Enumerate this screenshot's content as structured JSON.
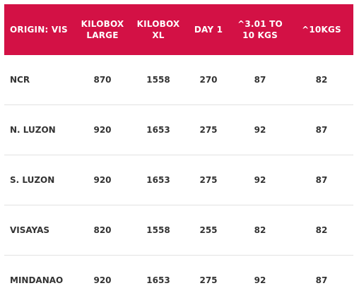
{
  "table": {
    "headers": [
      {
        "line1": "ORIGIN: VIS",
        "line2": ""
      },
      {
        "line1": "KILOBOX",
        "line2": "LARGE"
      },
      {
        "line1": "KILOBOX",
        "line2": "XL"
      },
      {
        "line1": "DAY 1",
        "line2": ""
      },
      {
        "line1": "^3.01 TO",
        "line2": "10 KGS"
      },
      {
        "line1": "^10KGS",
        "line2": ""
      }
    ],
    "rows": [
      [
        "NCR",
        "870",
        "1558",
        "270",
        "87",
        "82"
      ],
      [
        "N. LUZON",
        "920",
        "1653",
        "275",
        "92",
        "87"
      ],
      [
        "S. LUZON",
        "920",
        "1653",
        "275",
        "92",
        "87"
      ],
      [
        "VISAYAS",
        "820",
        "1558",
        "255",
        "82",
        "82"
      ],
      [
        "MINDANAO",
        "920",
        "1653",
        "275",
        "92",
        "87"
      ]
    ]
  },
  "colors": {
    "header_bg": "#d31145",
    "header_text": "#ffffff",
    "cell_text": "#333333"
  }
}
